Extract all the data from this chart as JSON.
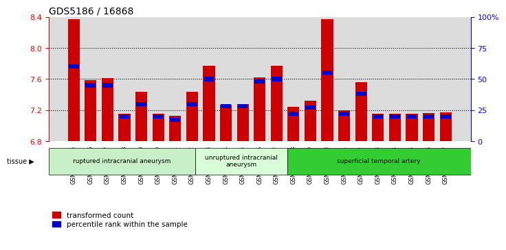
{
  "title": "GDS5186 / 16868",
  "samples": [
    "GSM1306885",
    "GSM1306886",
    "GSM1306887",
    "GSM1306888",
    "GSM1306889",
    "GSM1306890",
    "GSM1306891",
    "GSM1306892",
    "GSM1306893",
    "GSM1306894",
    "GSM1306895",
    "GSM1306896",
    "GSM1306897",
    "GSM1306898",
    "GSM1306899",
    "GSM1306900",
    "GSM1306901",
    "GSM1306902",
    "GSM1306903",
    "GSM1306904",
    "GSM1306905",
    "GSM1306906",
    "GSM1306907"
  ],
  "transformed_count": [
    8.37,
    7.59,
    7.61,
    7.15,
    7.44,
    7.15,
    7.13,
    7.44,
    7.77,
    7.27,
    7.28,
    7.62,
    7.77,
    7.24,
    7.32,
    8.37,
    7.2,
    7.56,
    7.15,
    7.15,
    7.15,
    7.16,
    7.17
  ],
  "percentile_rank": [
    60,
    45,
    45,
    20,
    30,
    20,
    17,
    30,
    50,
    28,
    28,
    48,
    50,
    22,
    27,
    55,
    22,
    38,
    20,
    20,
    20,
    20,
    20
  ],
  "groups": [
    {
      "label": "ruptured intracranial aneurysm",
      "start": 0,
      "end": 8,
      "color": "#c8f0c8"
    },
    {
      "label": "unruptured intracranial\naneurysm",
      "start": 8,
      "end": 13,
      "color": "#d8ffd8"
    },
    {
      "label": "superficial temporal artery",
      "start": 13,
      "end": 23,
      "color": "#33cc33"
    }
  ],
  "bar_color": "#cc0000",
  "blue_color": "#0000cc",
  "ylim_left": [
    6.8,
    8.4
  ],
  "ylim_right": [
    0,
    100
  ],
  "yticks_left": [
    6.8,
    7.2,
    7.6,
    8.0,
    8.4
  ],
  "yticks_right": [
    0,
    25,
    50,
    75,
    100
  ],
  "ytick_labels_right": [
    "0",
    "25",
    "50",
    "75",
    "100%"
  ],
  "legend_items": [
    "transformed count",
    "percentile rank within the sample"
  ],
  "tissue_label": "tissue",
  "plot_bg_color": "#dcdcdc",
  "bar_width": 0.7
}
